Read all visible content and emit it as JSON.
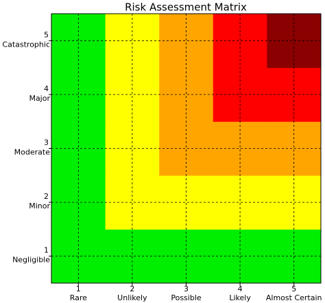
{
  "chart_data": {
    "type": "heatmap",
    "title": "Risk Assessment Matrix",
    "x": [
      1,
      2,
      3,
      4,
      5
    ],
    "y": [
      1,
      2,
      3,
      4,
      5
    ],
    "x_categories": [
      "Rare",
      "Unlikely",
      "Possible",
      "Likely",
      "Almost Certain"
    ],
    "y_categories": [
      "Negligible",
      "Minor",
      "Moderate",
      "Major",
      "Catastrophic"
    ],
    "z": [
      [
        1,
        1,
        1,
        1,
        1
      ],
      [
        1,
        2,
        2,
        2,
        2
      ],
      [
        1,
        2,
        3,
        3,
        3
      ],
      [
        1,
        2,
        3,
        4,
        4
      ],
      [
        1,
        2,
        3,
        4,
        5
      ]
    ],
    "colorscale": [
      "#00ee00",
      "#ffff00",
      "#ffa500",
      "#ff0000",
      "#8b0000"
    ],
    "xlim": [
      0.5,
      5.5
    ],
    "ylim": [
      0.5,
      5.5
    ],
    "xticks": [
      1,
      2,
      3,
      4,
      5
    ],
    "yticks": [
      1,
      2,
      3,
      4,
      5
    ],
    "grid": true
  }
}
